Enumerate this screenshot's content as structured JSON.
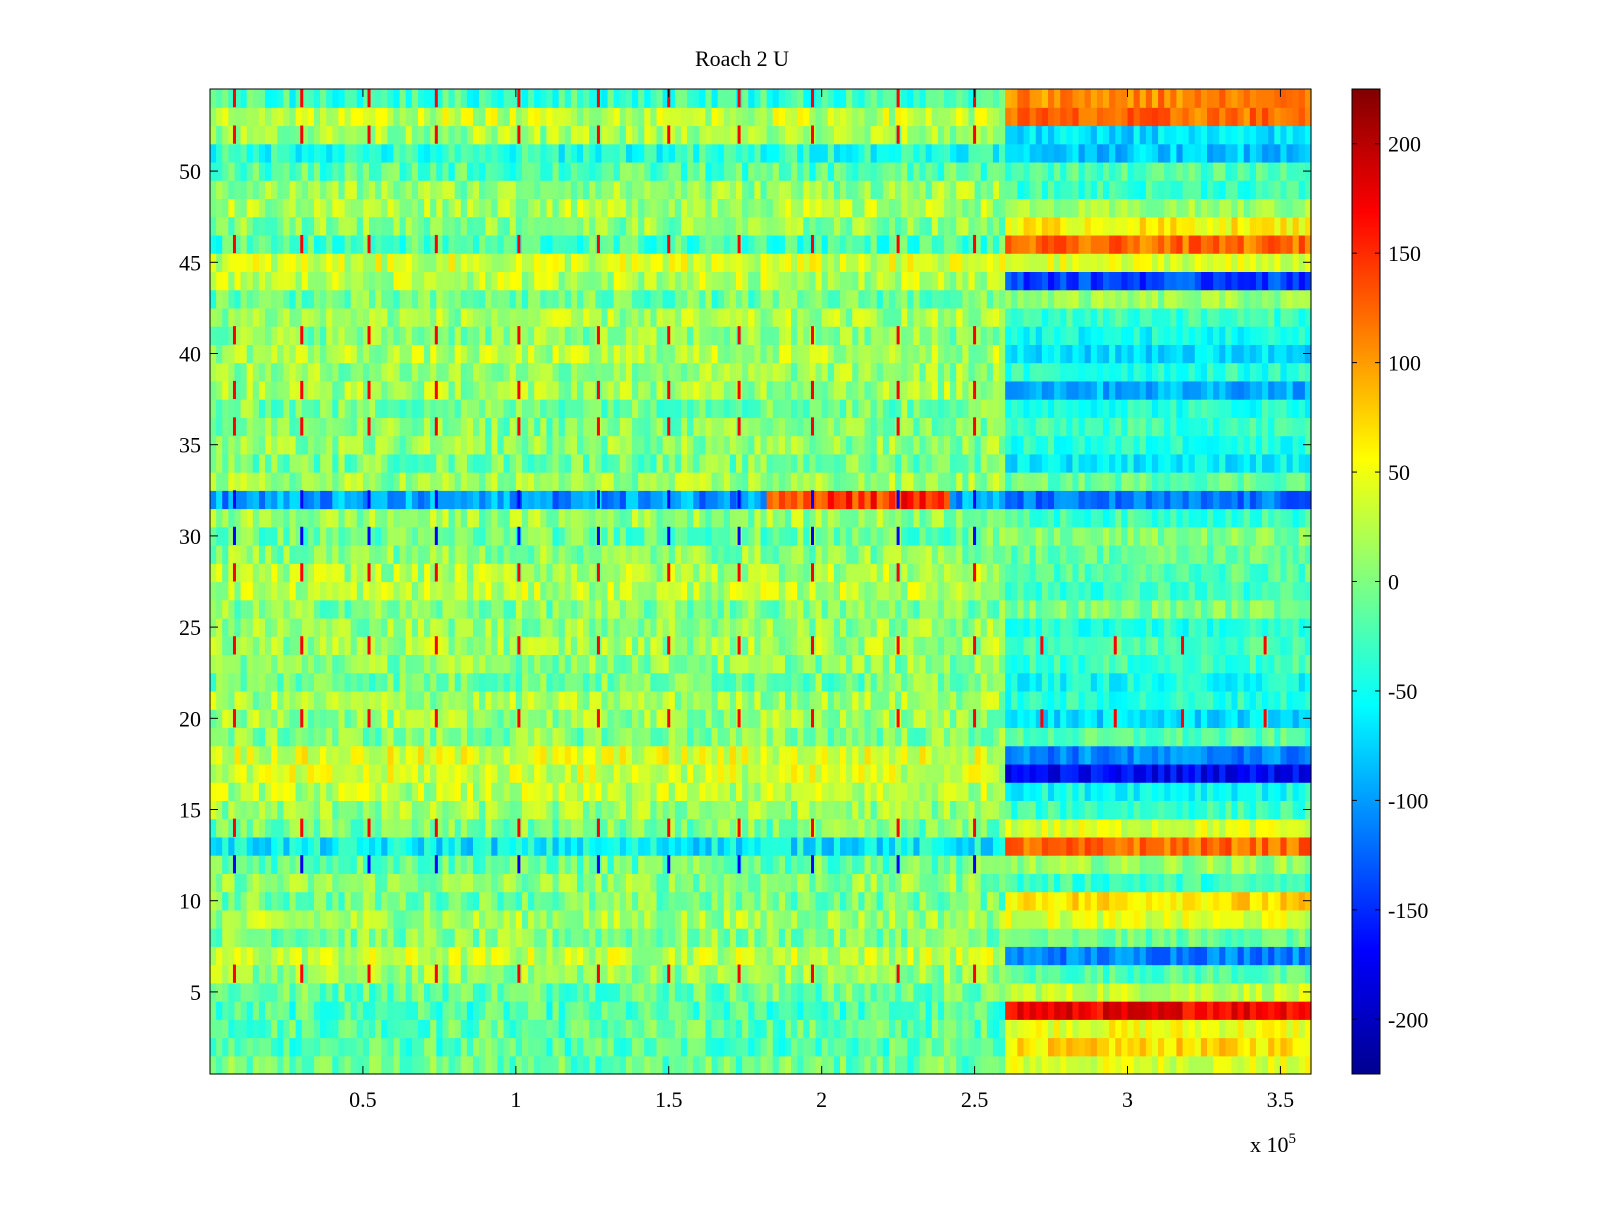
{
  "chart_data": {
    "type": "heatmap",
    "title": "Roach 2 U",
    "xlabel": "",
    "ylabel": "",
    "x_exponent_label": "x 10",
    "x_exponent_power": "5",
    "xlim": [
      0,
      3.6
    ],
    "ylim": [
      0.5,
      54.5
    ],
    "x_ticks": [
      0.5,
      1,
      1.5,
      2,
      2.5,
      3,
      3.5
    ],
    "x_tick_labels": [
      "0.5",
      "1",
      "1.5",
      "2",
      "2.5",
      "3",
      "3.5"
    ],
    "y_ticks": [
      5,
      10,
      15,
      20,
      25,
      30,
      35,
      40,
      45,
      50
    ],
    "y_tick_labels": [
      "5",
      "10",
      "15",
      "20",
      "25",
      "30",
      "35",
      "40",
      "45",
      "50"
    ],
    "rows": 54,
    "colormap": "jet",
    "clim": [
      -225,
      225
    ],
    "colorbar_ticks": [
      200,
      150,
      100,
      50,
      0,
      -50,
      -100,
      -150,
      -200
    ],
    "colorbar_tick_labels": [
      "200",
      "150",
      "100",
      "50",
      "0",
      "-50",
      "-100",
      "-150",
      "-200"
    ],
    "regime_change_x": 2.6,
    "early_regime_row_means": [
      -10,
      -20,
      -15,
      -25,
      -10,
      10,
      30,
      0,
      15,
      -5,
      5,
      -10,
      -60,
      -5,
      10,
      25,
      35,
      40,
      0,
      10,
      15,
      -5,
      5,
      15,
      10,
      0,
      25,
      20,
      5,
      -10,
      10,
      -100,
      10,
      -5,
      5,
      0,
      -5,
      15,
      10,
      20,
      5,
      15,
      -10,
      25,
      35,
      -25,
      5,
      20,
      10,
      -20,
      -40,
      15,
      30,
      -30
    ],
    "late_regime_row_means": [
      40,
      70,
      50,
      175,
      30,
      -20,
      -110,
      -10,
      40,
      70,
      -30,
      10,
      120,
      40,
      -30,
      -50,
      -170,
      -110,
      -20,
      -70,
      -40,
      -50,
      -30,
      -20,
      -40,
      0,
      -30,
      -20,
      -10,
      0,
      -30,
      -120,
      -10,
      -60,
      -40,
      -30,
      -40,
      -90,
      -40,
      -70,
      -50,
      -30,
      10,
      -140,
      40,
      120,
      60,
      10,
      -30,
      -20,
      -80,
      -70,
      120,
      110
    ],
    "spike_x_positions": [
      0.08,
      0.3,
      0.52,
      0.74,
      1.01,
      1.27,
      1.5,
      1.73,
      1.97,
      2.25,
      2.5
    ],
    "spike_rows": [
      6,
      12,
      14,
      20,
      24,
      28,
      30,
      32,
      36,
      38,
      41,
      46,
      52,
      54
    ],
    "late_spike_x_positions": [
      2.72,
      2.96,
      3.18,
      3.45
    ],
    "late_spike_rows": [
      20,
      24
    ],
    "row32_warm_segment_x": [
      1.83,
      2.42
    ],
    "row32_warm_value": 150
  }
}
